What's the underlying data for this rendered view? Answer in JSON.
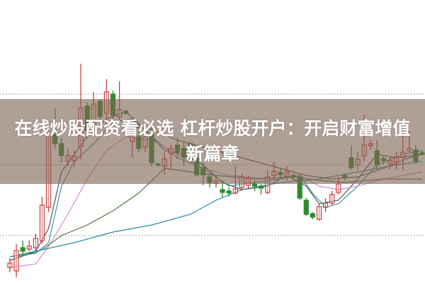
{
  "title": "在线炒股配资看必选 杠杆炒股开户：开启财富增值新篇章",
  "chart_data": {
    "type": "candlestick",
    "title": "",
    "xlabel": "",
    "ylabel": "",
    "ylim": [
      0,
      40
    ],
    "grid": {
      "horizontal": true,
      "style": "dotted",
      "levels": [
        6,
        16,
        26
      ]
    },
    "colors": {
      "up": "#c8413f",
      "down": "#2f8a2f",
      "banner": "#80644f",
      "grid": "#9aa0a8"
    },
    "candles_ohlc": [
      [
        1.5,
        2.8,
        0.8,
        2.1
      ],
      [
        1.0,
        4.8,
        0.1,
        3.9
      ],
      [
        4.3,
        5.3,
        3.3,
        3.8
      ],
      [
        4.1,
        5.3,
        3.8,
        4.5
      ],
      [
        4.3,
        6.3,
        3.8,
        5.6
      ],
      [
        5.3,
        11.5,
        4.8,
        10.3
      ],
      [
        10.0,
        21.3,
        9.3,
        20.3
      ],
      [
        20.3,
        24.0,
        18.3,
        19.0
      ],
      [
        19.0,
        19.8,
        16.3,
        17.3
      ],
      [
        16.5,
        18.3,
        15.8,
        17.3
      ],
      [
        16.6,
        18.1,
        15.7,
        17.2
      ],
      [
        18.6,
        30.3,
        16.8,
        24.0
      ],
      [
        24.3,
        24.8,
        19.8,
        20.8
      ],
      [
        21.3,
        26.3,
        20.3,
        24.6
      ],
      [
        25.0,
        25.3,
        22.3,
        22.8
      ],
      [
        23.3,
        28.1,
        21.8,
        26.3
      ],
      [
        26.0,
        26.5,
        22.3,
        23.0
      ],
      [
        22.8,
        27.8,
        22.3,
        23.8
      ],
      [
        23.6,
        23.8,
        23.1,
        23.3
      ],
      [
        19.3,
        21.3,
        17.0,
        20.3
      ],
      [
        20.0,
        20.8,
        17.8,
        18.3
      ],
      [
        18.5,
        20.8,
        17.8,
        20.0
      ],
      [
        20.3,
        21.3,
        15.8,
        16.3
      ],
      [
        16.1,
        16.3,
        15.8,
        16.0
      ],
      [
        15.8,
        17.8,
        14.6,
        16.8
      ],
      [
        17.6,
        18.8,
        15.3,
        18.3
      ],
      [
        18.8,
        19.8,
        16.8,
        17.8
      ],
      [
        18.3,
        19.3,
        15.8,
        17.1
      ],
      [
        19.0,
        19.3,
        18.3,
        18.7
      ],
      [
        17.0,
        17.8,
        14.3,
        14.6
      ],
      [
        15.6,
        16.3,
        13.1,
        14.6
      ],
      [
        14.3,
        14.8,
        12.8,
        13.5
      ],
      [
        13.4,
        14.3,
        12.8,
        13.7
      ],
      [
        12.5,
        13.8,
        11.3,
        12.1
      ],
      [
        12.3,
        12.8,
        11.5,
        12.0
      ],
      [
        12.0,
        15.8,
        11.8,
        12.6
      ],
      [
        12.8,
        14.8,
        12.3,
        14.3
      ],
      [
        13.1,
        14.5,
        12.5,
        14.1
      ],
      [
        13.3,
        13.8,
        12.3,
        13.0
      ],
      [
        13.0,
        13.3,
        11.8,
        12.7
      ],
      [
        12.1,
        15.3,
        11.8,
        14.3
      ],
      [
        14.5,
        16.5,
        13.8,
        15.1
      ],
      [
        14.9,
        15.5,
        14.1,
        14.6
      ],
      [
        14.3,
        15.8,
        13.8,
        15.0
      ],
      [
        14.5,
        14.8,
        13.8,
        14.3
      ],
      [
        14.3,
        14.8,
        11.0,
        11.3
      ],
      [
        11.0,
        11.3,
        8.8,
        9.0
      ],
      [
        9.1,
        9.3,
        8.3,
        8.6
      ],
      [
        8.3,
        10.5,
        8.1,
        10.1
      ],
      [
        10.0,
        11.3,
        9.3,
        10.6
      ],
      [
        10.6,
        12.3,
        10.3,
        11.8
      ],
      [
        12.1,
        14.3,
        11.8,
        13.3
      ],
      [
        14.5,
        14.8,
        13.8,
        14.2
      ],
      [
        17.0,
        18.8,
        15.3,
        15.6
      ],
      [
        16.0,
        17.8,
        15.3,
        16.8
      ],
      [
        17.3,
        23.1,
        16.5,
        18.8
      ],
      [
        18.7,
        19.5,
        18.1,
        19.0
      ],
      [
        18.0,
        19.5,
        15.3,
        16.0
      ],
      [
        16.9,
        17.3,
        16.1,
        16.6
      ],
      [
        16.2,
        17.1,
        15.3,
        16.6
      ],
      [
        16.4,
        17.8,
        15.3,
        17.1
      ],
      [
        17.0,
        20.8,
        15.3,
        17.8
      ],
      [
        18.0,
        20.8,
        17.8,
        18.3
      ],
      [
        18.1,
        18.8,
        16.1,
        16.5
      ],
      [
        17.7,
        18.0,
        17.3,
        17.5
      ]
    ],
    "moving_averages": [
      {
        "color": "#555555",
        "points": [
          [
            0,
            2.5
          ],
          [
            4,
            3.8
          ],
          [
            6,
            7
          ],
          [
            8,
            15
          ],
          [
            10,
            17.5
          ],
          [
            12,
            20
          ],
          [
            15,
            22.5
          ],
          [
            18,
            23.5
          ],
          [
            21,
            21
          ],
          [
            24,
            18
          ],
          [
            27,
            17.5
          ],
          [
            30,
            16
          ],
          [
            33,
            13.5
          ],
          [
            36,
            12.5
          ],
          [
            40,
            13
          ],
          [
            43,
            14.5
          ],
          [
            46,
            13
          ],
          [
            48,
            10.5
          ],
          [
            51,
            11
          ],
          [
            54,
            14
          ],
          [
            57,
            17.5
          ],
          [
            60,
            17
          ],
          [
            64,
            17.5
          ]
        ]
      },
      {
        "color": "#3a9a9a",
        "points": [
          [
            0,
            3
          ],
          [
            4,
            3.5
          ],
          [
            6,
            5
          ],
          [
            8,
            13
          ],
          [
            10,
            16.5
          ],
          [
            13,
            19
          ],
          [
            16,
            22
          ],
          [
            19,
            22.5
          ],
          [
            22,
            20
          ],
          [
            26,
            17
          ],
          [
            30,
            15.5
          ],
          [
            34,
            13
          ],
          [
            38,
            13.5
          ],
          [
            42,
            14
          ],
          [
            45,
            14.5
          ],
          [
            47,
            12
          ],
          [
            49,
            10
          ],
          [
            51,
            10.5
          ],
          [
            54,
            13
          ],
          [
            57,
            16
          ],
          [
            61,
            17.5
          ],
          [
            64,
            18
          ]
        ]
      },
      {
        "color": "#d08ad0",
        "points": [
          [
            0,
            1.5
          ],
          [
            4,
            2
          ],
          [
            6,
            4.5
          ],
          [
            9,
            9
          ],
          [
            12,
            14
          ],
          [
            15,
            18
          ],
          [
            18,
            20
          ],
          [
            22,
            19.5
          ],
          [
            26,
            17.5
          ],
          [
            30,
            15.5
          ],
          [
            34,
            14.5
          ],
          [
            40,
            14
          ],
          [
            45,
            14.5
          ],
          [
            48,
            13
          ],
          [
            51,
            12.5
          ],
          [
            54,
            13
          ],
          [
            58,
            14
          ],
          [
            64,
            15
          ]
        ]
      },
      {
        "color": "#4a7a3a",
        "points": [
          [
            0,
            2.5
          ],
          [
            5,
            4
          ],
          [
            8,
            6
          ],
          [
            12,
            7.5
          ],
          [
            16,
            9.5
          ],
          [
            20,
            12
          ],
          [
            24,
            15.5
          ],
          [
            28,
            15
          ],
          [
            32,
            14.5
          ],
          [
            38,
            14
          ],
          [
            44,
            14.3
          ],
          [
            48,
            13.8
          ],
          [
            52,
            13.5
          ],
          [
            58,
            14
          ],
          [
            64,
            14
          ]
        ]
      },
      {
        "color": "#2b8aa8",
        "points": [
          [
            0,
            3
          ],
          [
            5,
            4
          ],
          [
            10,
            5
          ],
          [
            16,
            6.5
          ],
          [
            22,
            7.5
          ],
          [
            28,
            9
          ],
          [
            32,
            11
          ],
          [
            36,
            12.5
          ],
          [
            42,
            13.5
          ],
          [
            48,
            14
          ],
          [
            54,
            15
          ],
          [
            60,
            16
          ],
          [
            64,
            16.5
          ]
        ]
      },
      {
        "color": "#6b5a3a",
        "points": [
          [
            18,
            21.5
          ],
          [
            22,
            21
          ],
          [
            26,
            19.5
          ],
          [
            30,
            18.5
          ],
          [
            34,
            17.5
          ],
          [
            38,
            16.5
          ],
          [
            42,
            15.5
          ],
          [
            46,
            14.5
          ],
          [
            50,
            14
          ],
          [
            54,
            14.3
          ],
          [
            58,
            15.5
          ],
          [
            62,
            17
          ],
          [
            64,
            17.5
          ]
        ]
      }
    ]
  }
}
